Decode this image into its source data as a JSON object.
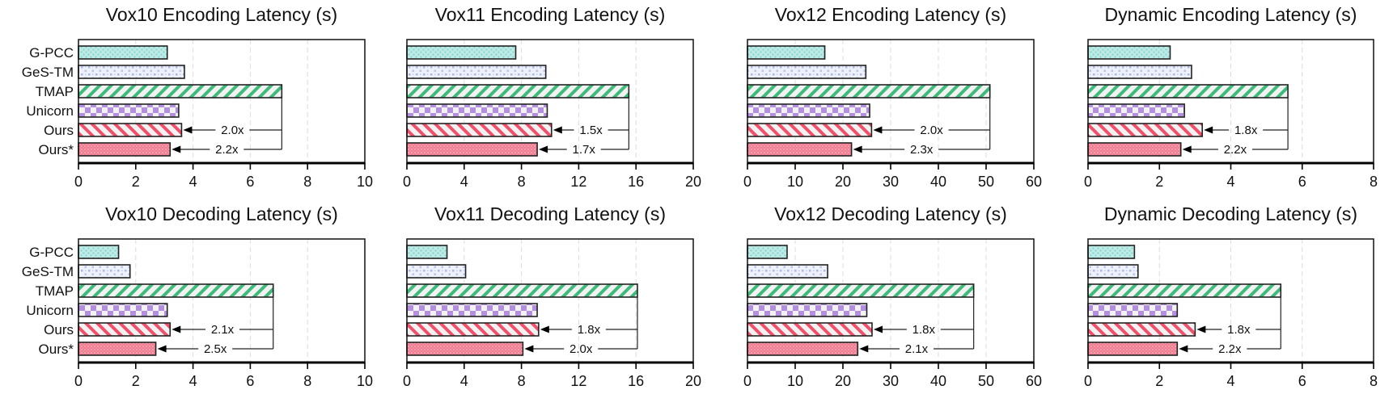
{
  "chart_data": [
    {
      "type": "bar",
      "orientation": "horizontal",
      "title": "Vox10 Encoding Latency (s)",
      "categories": [
        "G-PCC",
        "GeS-TM",
        "TMAP",
        "Unicorn",
        "Ours",
        "Ours*"
      ],
      "values": [
        3.1,
        3.7,
        7.1,
        3.5,
        3.6,
        3.2
      ],
      "xlim": [
        0,
        10
      ],
      "xticks": [
        0,
        2,
        4,
        6,
        8,
        10
      ],
      "annotations": [
        {
          "from": "TMAP",
          "to": "Ours",
          "label": "2.0x"
        },
        {
          "from": "TMAP",
          "to": "Ours*",
          "label": "2.2x"
        }
      ],
      "grid": "x-dashed",
      "show_category_labels": true
    },
    {
      "type": "bar",
      "orientation": "horizontal",
      "title": "Vox11 Encoding Latency (s)",
      "categories": [
        "G-PCC",
        "GeS-TM",
        "TMAP",
        "Unicorn",
        "Ours",
        "Ours*"
      ],
      "values": [
        7.6,
        9.7,
        15.5,
        9.8,
        10.1,
        9.1
      ],
      "xlim": [
        0,
        20
      ],
      "xticks": [
        0,
        4,
        8,
        12,
        16,
        20
      ],
      "annotations": [
        {
          "from": "TMAP",
          "to": "Ours",
          "label": "1.5x"
        },
        {
          "from": "TMAP",
          "to": "Ours*",
          "label": "1.7x"
        }
      ],
      "grid": "x-dashed",
      "show_category_labels": false
    },
    {
      "type": "bar",
      "orientation": "horizontal",
      "title": "Vox12 Encoding Latency (s)",
      "categories": [
        "G-PCC",
        "GeS-TM",
        "TMAP",
        "Unicorn",
        "Ours",
        "Ours*"
      ],
      "values": [
        16.2,
        24.8,
        50.8,
        25.6,
        26.0,
        21.8
      ],
      "xlim": [
        0,
        60
      ],
      "xticks": [
        0,
        10,
        20,
        30,
        40,
        50,
        60
      ],
      "annotations": [
        {
          "from": "TMAP",
          "to": "Ours",
          "label": "2.0x"
        },
        {
          "from": "TMAP",
          "to": "Ours*",
          "label": "2.3x"
        }
      ],
      "grid": "x-dashed",
      "show_category_labels": false
    },
    {
      "type": "bar",
      "orientation": "horizontal",
      "title": "Dynamic Encoding Latency (s)",
      "categories": [
        "G-PCC",
        "GeS-TM",
        "TMAP",
        "Unicorn",
        "Ours",
        "Ours*"
      ],
      "values": [
        2.3,
        2.9,
        5.6,
        2.7,
        3.2,
        2.6
      ],
      "xlim": [
        0,
        8
      ],
      "xticks": [
        0,
        2,
        4,
        6,
        8
      ],
      "annotations": [
        {
          "from": "TMAP",
          "to": "Ours",
          "label": "1.8x"
        },
        {
          "from": "TMAP",
          "to": "Ours*",
          "label": "2.2x"
        }
      ],
      "grid": "x-dashed",
      "show_category_labels": false
    },
    {
      "type": "bar",
      "orientation": "horizontal",
      "title": "Vox10 Decoding Latency (s)",
      "categories": [
        "G-PCC",
        "GeS-TM",
        "TMAP",
        "Unicorn",
        "Ours",
        "Ours*"
      ],
      "values": [
        1.4,
        1.8,
        6.8,
        3.1,
        3.2,
        2.7
      ],
      "xlim": [
        0,
        10
      ],
      "xticks": [
        0,
        2,
        4,
        6,
        8,
        10
      ],
      "annotations": [
        {
          "from": "TMAP",
          "to": "Ours",
          "label": "2.1x"
        },
        {
          "from": "TMAP",
          "to": "Ours*",
          "label": "2.5x"
        }
      ],
      "grid": "x-dashed",
      "show_category_labels": true
    },
    {
      "type": "bar",
      "orientation": "horizontal",
      "title": "Vox11 Decoding Latency (s)",
      "categories": [
        "G-PCC",
        "GeS-TM",
        "TMAP",
        "Unicorn",
        "Ours",
        "Ours*"
      ],
      "values": [
        2.8,
        4.1,
        16.1,
        9.1,
        9.2,
        8.1
      ],
      "xlim": [
        0,
        20
      ],
      "xticks": [
        0,
        4,
        8,
        12,
        16,
        20
      ],
      "annotations": [
        {
          "from": "TMAP",
          "to": "Ours",
          "label": "1.8x"
        },
        {
          "from": "TMAP",
          "to": "Ours*",
          "label": "2.0x"
        }
      ],
      "grid": "x-dashed",
      "show_category_labels": false
    },
    {
      "type": "bar",
      "orientation": "horizontal",
      "title": "Vox12 Decoding Latency (s)",
      "categories": [
        "G-PCC",
        "GeS-TM",
        "TMAP",
        "Unicorn",
        "Ours",
        "Ours*"
      ],
      "values": [
        8.3,
        16.8,
        47.4,
        25.0,
        26.1,
        23.1
      ],
      "xlim": [
        0,
        60
      ],
      "xticks": [
        0,
        10,
        20,
        30,
        40,
        50,
        60
      ],
      "annotations": [
        {
          "from": "TMAP",
          "to": "Ours",
          "label": "1.8x"
        },
        {
          "from": "TMAP",
          "to": "Ours*",
          "label": "2.1x"
        }
      ],
      "grid": "x-dashed",
      "show_category_labels": false
    },
    {
      "type": "bar",
      "orientation": "horizontal",
      "title": "Dynamic Decoding Latency (s)",
      "categories": [
        "G-PCC",
        "GeS-TM",
        "TMAP",
        "Unicorn",
        "Ours",
        "Ours*"
      ],
      "values": [
        1.3,
        1.4,
        5.4,
        2.5,
        3.0,
        2.5
      ],
      "xlim": [
        0,
        8
      ],
      "xticks": [
        0,
        2,
        4,
        6,
        8
      ],
      "annotations": [
        {
          "from": "TMAP",
          "to": "Ours",
          "label": "1.8x"
        },
        {
          "from": "TMAP",
          "to": "Ours*",
          "label": "2.2x"
        }
      ],
      "grid": "x-dashed",
      "show_category_labels": false
    }
  ],
  "series_styles": [
    {
      "name": "G-PCC",
      "pattern": "dots",
      "color": "#7fd6cf",
      "bg": "#c9efec"
    },
    {
      "name": "GeS-TM",
      "pattern": "sparse-squares",
      "color": "#a9b8e6",
      "bg": "#eef1fa"
    },
    {
      "name": "TMAP",
      "pattern": "backslash-hatch",
      "color": "#3dbb7a",
      "bg": "#f2f2f2"
    },
    {
      "name": "Unicorn",
      "pattern": "checker",
      "color": "#b48ee0",
      "bg": "#f2f2f2"
    },
    {
      "name": "Ours",
      "pattern": "slash-hatch",
      "color": "#f2506a",
      "bg": "#f2f2f2"
    },
    {
      "name": "Ours*",
      "pattern": "fine-dots",
      "color": "#ef6f86",
      "bg": "#f7c9d1"
    }
  ]
}
